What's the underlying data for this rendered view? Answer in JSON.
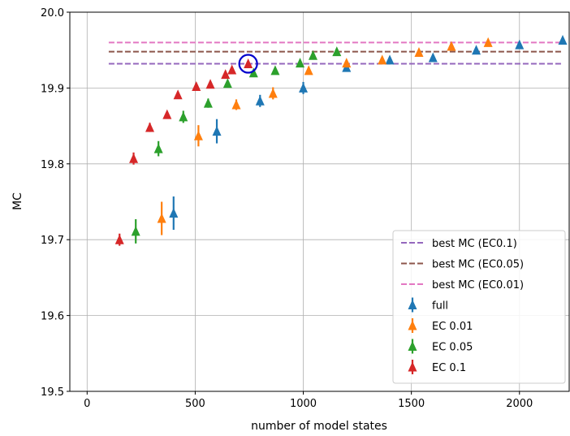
{
  "chart_data": {
    "type": "scatter",
    "xlabel": "number of model states",
    "ylabel": "MC",
    "xlim": [
      -80,
      2230
    ],
    "ylim": [
      19.5,
      20.0
    ],
    "x_ticks": [
      0,
      500,
      1000,
      1500,
      2000
    ],
    "y_ticks": [
      19.5,
      19.6,
      19.7,
      19.8,
      19.9,
      20.0
    ],
    "grid": true,
    "legend_position": "lower-right",
    "colors": {
      "full": "#1f77b4",
      "ec001": "#ff7f0e",
      "ec005": "#2ca02c",
      "ec01": "#d62728",
      "best_ec01": "#9467bd",
      "best_ec005": "#8c564b",
      "best_ec001": "#e377c2",
      "highlight": "#0000cc"
    },
    "hlines": [
      {
        "name": "best MC (EC0.1)",
        "y": 19.932,
        "x_range": [
          100,
          2200
        ],
        "color": "#9467bd"
      },
      {
        "name": "best MC (EC0.05)",
        "y": 19.948,
        "x_range": [
          100,
          2200
        ],
        "color": "#8c564b"
      },
      {
        "name": "best MC (EC0.01)",
        "y": 19.96,
        "x_range": [
          100,
          2200
        ],
        "color": "#e377c2"
      }
    ],
    "series": [
      {
        "name": "full",
        "color": "#1f77b4",
        "points": [
          {
            "x": 400,
            "y": 19.735,
            "err": 0.022
          },
          {
            "x": 600,
            "y": 19.843,
            "err": 0.016
          },
          {
            "x": 800,
            "y": 19.883,
            "err": 0.008
          },
          {
            "x": 1000,
            "y": 19.9,
            "err": 0.008
          },
          {
            "x": 1200,
            "y": 19.927,
            "err": 0.004
          },
          {
            "x": 1400,
            "y": 19.937,
            "err": 0.004
          },
          {
            "x": 1600,
            "y": 19.94,
            "err": 0.004
          },
          {
            "x": 1800,
            "y": 19.95,
            "err": 0.004
          },
          {
            "x": 2000,
            "y": 19.957,
            "err": 0.004
          },
          {
            "x": 2200,
            "y": 19.963,
            "err": 0.003
          }
        ]
      },
      {
        "name": "EC 0.01",
        "color": "#ff7f0e",
        "points": [
          {
            "x": 345,
            "y": 19.728,
            "err": 0.022
          },
          {
            "x": 515,
            "y": 19.837,
            "err": 0.014
          },
          {
            "x": 690,
            "y": 19.878,
            "err": 0.007
          },
          {
            "x": 860,
            "y": 19.893,
            "err": 0.008
          },
          {
            "x": 1025,
            "y": 19.923,
            "err": 0.005
          },
          {
            "x": 1200,
            "y": 19.933,
            "err": 0.004
          },
          {
            "x": 1365,
            "y": 19.937,
            "err": 0.004
          },
          {
            "x": 1535,
            "y": 19.947,
            "err": 0.003
          },
          {
            "x": 1685,
            "y": 19.955,
            "err": 0.003
          },
          {
            "x": 1855,
            "y": 19.96,
            "err": 0.003
          }
        ]
      },
      {
        "name": "EC 0.05",
        "color": "#2ca02c",
        "points": [
          {
            "x": 225,
            "y": 19.711,
            "err": 0.016
          },
          {
            "x": 330,
            "y": 19.82,
            "err": 0.01
          },
          {
            "x": 445,
            "y": 19.862,
            "err": 0.008
          },
          {
            "x": 560,
            "y": 19.88,
            "err": 0.006
          },
          {
            "x": 650,
            "y": 19.906,
            "err": 0.004
          },
          {
            "x": 770,
            "y": 19.92,
            "err": 0.004
          },
          {
            "x": 870,
            "y": 19.923,
            "err": 0.004
          },
          {
            "x": 985,
            "y": 19.933,
            "err": 0.004
          },
          {
            "x": 1045,
            "y": 19.943,
            "err": 0.004
          },
          {
            "x": 1155,
            "y": 19.948,
            "err": 0.003
          }
        ]
      },
      {
        "name": "EC 0.1",
        "color": "#d62728",
        "points": [
          {
            "x": 150,
            "y": 19.7,
            "err": 0.008
          },
          {
            "x": 215,
            "y": 19.807,
            "err": 0.008
          },
          {
            "x": 290,
            "y": 19.848,
            "err": 0.006
          },
          {
            "x": 370,
            "y": 19.865,
            "err": 0.004
          },
          {
            "x": 420,
            "y": 19.891,
            "err": 0.004
          },
          {
            "x": 505,
            "y": 19.902,
            "err": 0.004
          },
          {
            "x": 570,
            "y": 19.905,
            "err": 0.004
          },
          {
            "x": 640,
            "y": 19.918,
            "err": 0.004
          },
          {
            "x": 670,
            "y": 19.924,
            "err": 0.004
          },
          {
            "x": 745,
            "y": 19.932,
            "err": 0.004
          }
        ]
      }
    ],
    "highlight": {
      "x": 745,
      "y": 19.932
    },
    "legend": [
      {
        "label": "best MC (EC0.1)",
        "kind": "line",
        "color": "#9467bd"
      },
      {
        "label": "best MC (EC0.05)",
        "kind": "line",
        "color": "#8c564b"
      },
      {
        "label": "best MC (EC0.01)",
        "kind": "line",
        "color": "#e377c2"
      },
      {
        "label": "full",
        "kind": "marker",
        "color": "#1f77b4"
      },
      {
        "label": "EC 0.01",
        "kind": "marker",
        "color": "#ff7f0e"
      },
      {
        "label": "EC 0.05",
        "kind": "marker",
        "color": "#2ca02c"
      },
      {
        "label": "EC 0.1",
        "kind": "marker",
        "color": "#d62728"
      }
    ]
  }
}
